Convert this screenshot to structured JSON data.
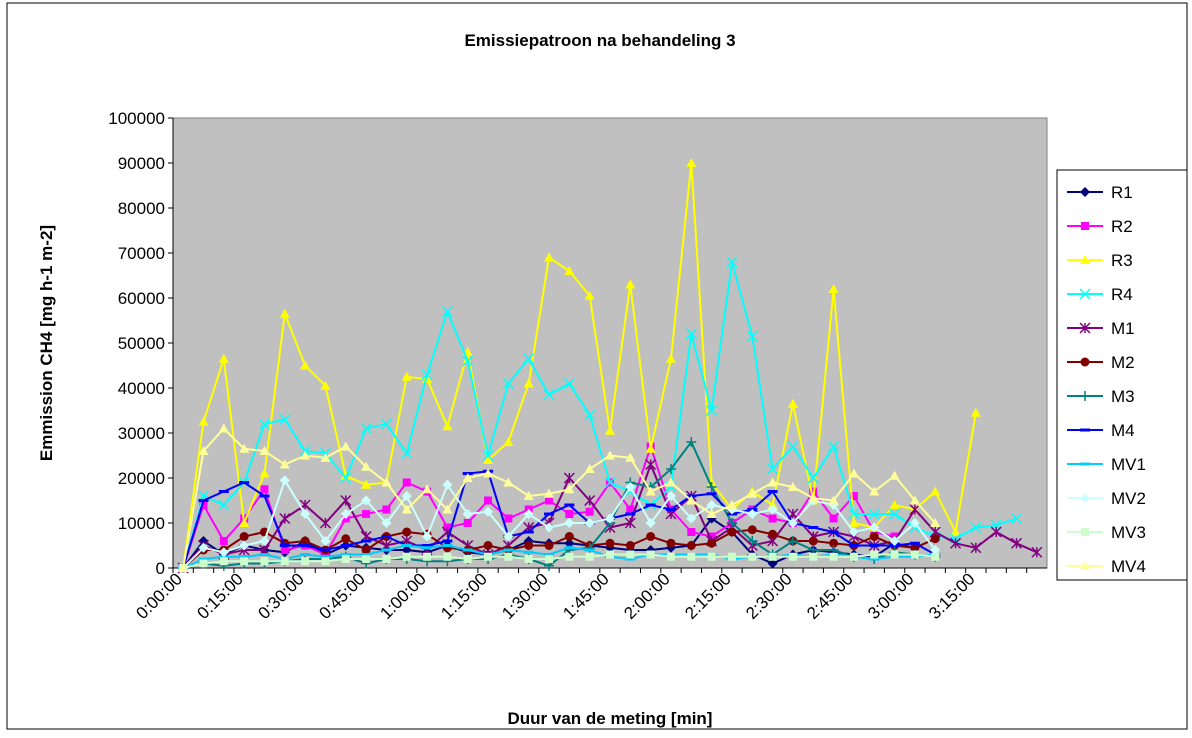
{
  "chart_data": {
    "type": "line",
    "title": "Emissiepatroon na behandeling 3",
    "x_label": "Duur van de meting [min]",
    "y_label": "Emmission CH4 [mg h-1 m-2]",
    "categories": [
      "0:00:00",
      null,
      null,
      "0:15:00",
      null,
      null,
      "0:30:00",
      null,
      null,
      "0:45:00",
      null,
      null,
      "1:00:00",
      null,
      null,
      "1:15:00",
      null,
      null,
      "1:30:00",
      null,
      null,
      "1:45:00",
      null,
      null,
      "2:00:00",
      null,
      null,
      "2:15:00",
      null,
      null,
      "2:30:00",
      null,
      null,
      "2:45:00",
      null,
      null,
      "3:00:00",
      null,
      null,
      "3:15:00",
      null,
      null,
      null
    ],
    "ylim": [
      0,
      100000
    ],
    "yticks": [
      0,
      10000,
      20000,
      30000,
      40000,
      50000,
      60000,
      70000,
      80000,
      90000,
      100000
    ],
    "grid": false,
    "legend": "right",
    "background": "#c0c0c0",
    "series": [
      {
        "name": "R1",
        "color": "#000080",
        "marker": "diamond",
        "values": [
          0,
          6000,
          3000,
          5000,
          4000,
          3500,
          6000,
          3000,
          5000,
          4500,
          4000,
          4000,
          3500,
          5000,
          3500,
          3000,
          4000,
          6000,
          5500,
          5500,
          5000,
          4500,
          4000,
          4000,
          4500,
          5000,
          11000,
          8000,
          3000,
          1000,
          3000,
          4000,
          3500,
          3000,
          2500,
          5500,
          4500,
          null,
          null,
          null,
          null,
          null,
          null
        ]
      },
      {
        "name": "R2",
        "color": "#ff00ff",
        "marker": "square",
        "values": [
          0,
          14000,
          6000,
          11000,
          17500,
          4000,
          5000,
          3000,
          11000,
          12000,
          13000,
          19000,
          17000,
          9000,
          10000,
          15000,
          11000,
          13000,
          15000,
          12000,
          12500,
          19000,
          13000,
          27000,
          13000,
          8000,
          7000,
          10000,
          13000,
          11000,
          10000,
          17000,
          11000,
          16000,
          8000,
          7000,
          null,
          null,
          null,
          null,
          null,
          null,
          null
        ]
      },
      {
        "name": "R3",
        "color": "#ffff00",
        "marker": "triangle",
        "values": [
          0,
          32500,
          46500,
          10000,
          21000,
          56500,
          45000,
          40500,
          20500,
          18500,
          19000,
          42500,
          42000,
          31500,
          48000,
          24000,
          28000,
          41000,
          69000,
          66000,
          60500,
          30500,
          63000,
          26500,
          46500,
          90000,
          19000,
          13000,
          17000,
          14000,
          36500,
          15000,
          62000,
          10000,
          9000,
          14000,
          13000,
          17000,
          8000,
          34500,
          null,
          null,
          null
        ]
      },
      {
        "name": "R4",
        "color": "#00ffff",
        "marker": "x",
        "values": [
          0,
          16000,
          14000,
          19000,
          32000,
          33000,
          26000,
          25500,
          20000,
          31000,
          32000,
          25500,
          43000,
          57000,
          46000,
          25000,
          41000,
          46500,
          38500,
          41000,
          34000,
          19000,
          17000,
          14000,
          18000,
          52000,
          35000,
          68000,
          51500,
          22000,
          27000,
          20000,
          27000,
          12000,
          12000,
          12000,
          9000,
          7000,
          6500,
          9000,
          9500,
          11000,
          null
        ]
      },
      {
        "name": "M1",
        "color": "#800080",
        "marker": "star",
        "values": [
          0,
          5000,
          3000,
          4000,
          4000,
          11000,
          14000,
          10000,
          15000,
          7000,
          5000,
          6000,
          4000,
          8000,
          5000,
          3000,
          5000,
          9000,
          10000,
          20000,
          15000,
          9000,
          10000,
          23000,
          12000,
          16000,
          6000,
          9000,
          5000,
          6000,
          12000,
          7000,
          8000,
          7000,
          5000,
          6000,
          13000,
          8000,
          5500,
          4500,
          8000,
          5500,
          3500
        ]
      },
      {
        "name": "M2",
        "color": "#800000",
        "marker": "circle",
        "values": [
          0,
          4000,
          4000,
          7000,
          8000,
          5500,
          6000,
          4000,
          6500,
          4000,
          7000,
          8000,
          7500,
          4500,
          4000,
          5000,
          4000,
          5000,
          5000,
          7000,
          5000,
          5500,
          5000,
          7000,
          5500,
          5000,
          5500,
          8000,
          8500,
          7500,
          6000,
          6000,
          5500,
          5000,
          7000,
          5000,
          4500,
          6500,
          null,
          null,
          null,
          null,
          null
        ]
      },
      {
        "name": "M3",
        "color": "#008080",
        "marker": "plus",
        "values": [
          0,
          1000,
          500,
          1000,
          1000,
          1500,
          2000,
          2000,
          2500,
          1000,
          2000,
          2000,
          1500,
          1500,
          2000,
          2000,
          3000,
          2000,
          500,
          4000,
          4500,
          10000,
          19000,
          18000,
          22000,
          28000,
          18000,
          10000,
          6000,
          3000,
          6000,
          4000,
          4000,
          2500,
          2000,
          3500,
          3000,
          2500,
          null,
          null,
          null,
          null,
          null
        ]
      },
      {
        "name": "M4",
        "color": "#0000ff",
        "marker": "dash",
        "values": [
          0,
          15000,
          17000,
          19000,
          16000,
          5000,
          5000,
          4000,
          5000,
          6000,
          7000,
          5000,
          5000,
          6000,
          21000,
          21500,
          7000,
          8000,
          12000,
          14000,
          10000,
          11000,
          12000,
          14000,
          13000,
          16000,
          16500,
          12000,
          13000,
          17000,
          10000,
          9000,
          8000,
          5000,
          5000,
          5000,
          5500,
          3000,
          null,
          null,
          null,
          null,
          null
        ]
      },
      {
        "name": "MV1",
        "color": "#00ccff",
        "marker": "dash",
        "values": [
          0,
          2000,
          2500,
          2500,
          3000,
          2000,
          3000,
          2500,
          3000,
          3000,
          4000,
          5000,
          4500,
          5000,
          4000,
          3000,
          4000,
          3500,
          3000,
          4500,
          4000,
          2500,
          2000,
          3000,
          3000,
          3000,
          3000,
          2000,
          2500,
          2500,
          3000,
          2500,
          3000,
          2500,
          2000,
          2500,
          2500,
          3000,
          null,
          null,
          null,
          null,
          null
        ]
      },
      {
        "name": "MV2",
        "color": "#ccffff",
        "marker": "diamond",
        "values": [
          0,
          4500,
          3500,
          5000,
          6000,
          19500,
          12000,
          6000,
          12000,
          15000,
          10000,
          16000,
          7000,
          18500,
          12000,
          12500,
          7000,
          12000,
          9000,
          10000,
          10000,
          11000,
          18000,
          10000,
          16000,
          11000,
          14000,
          13000,
          12000,
          13000,
          10000,
          15000,
          14000,
          8000,
          9000,
          6000,
          10000,
          4000,
          null,
          null,
          null,
          null,
          null
        ]
      },
      {
        "name": "MV3",
        "color": "#ccffcc",
        "marker": "square",
        "values": [
          0,
          1000,
          1500,
          1500,
          1500,
          1500,
          1500,
          1500,
          2000,
          2000,
          2000,
          2500,
          2500,
          2500,
          2000,
          2500,
          2500,
          2000,
          2000,
          2500,
          2500,
          3000,
          3000,
          3000,
          2500,
          2500,
          2500,
          2500,
          2500,
          2500,
          2500,
          2500,
          2500,
          2500,
          3000,
          3000,
          3000,
          2500,
          null,
          null,
          null,
          null,
          null
        ]
      },
      {
        "name": "MV4",
        "color": "#ffff99",
        "marker": "triangle",
        "values": [
          0,
          26000,
          31000,
          26500,
          26000,
          23000,
          25000,
          24500,
          27000,
          22500,
          19000,
          13000,
          17500,
          13000,
          20000,
          21000,
          19000,
          16000,
          16500,
          17500,
          22000,
          25000,
          24500,
          17000,
          19000,
          15000,
          12000,
          14000,
          16500,
          19000,
          18000,
          15500,
          15000,
          21000,
          17000,
          20500,
          15000,
          10000,
          null,
          null,
          null,
          null,
          null
        ]
      }
    ]
  }
}
